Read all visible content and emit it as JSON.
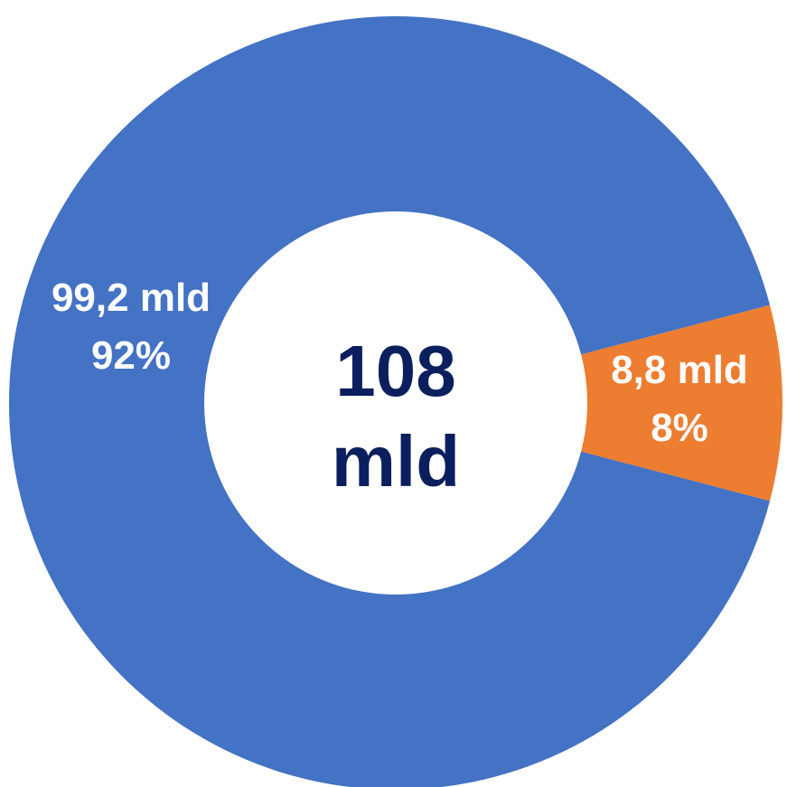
{
  "chart_data": {
    "type": "pie",
    "variant": "donut",
    "center_label": {
      "line1": "108",
      "line2": "mld"
    },
    "slices": [
      {
        "value_label": "99,2 mld",
        "percent_label": "92%",
        "value": 99.2,
        "percent": 92,
        "color": "#4472c4"
      },
      {
        "value_label": "8,8 mld",
        "percent_label": "8%",
        "value": 8.8,
        "percent": 8,
        "color": "#ed7d31"
      }
    ]
  }
}
